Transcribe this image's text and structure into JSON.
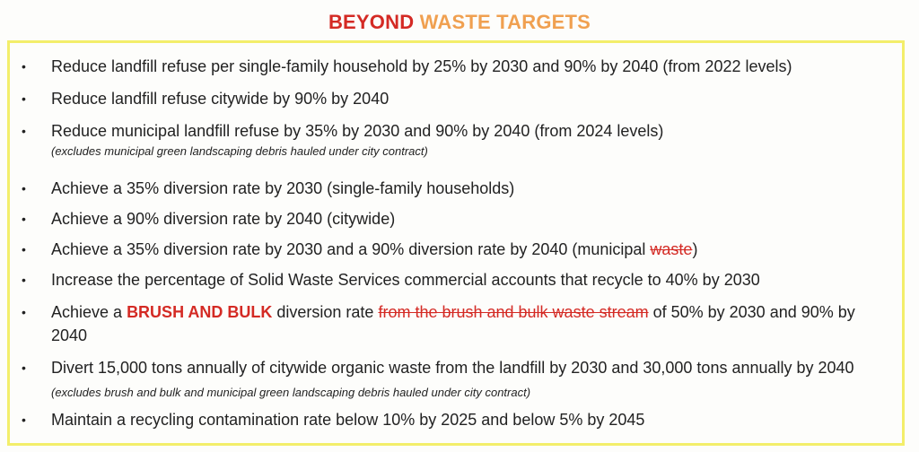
{
  "title": {
    "part1": "BEYOND",
    "part2": "WASTE TARGETS"
  },
  "colors": {
    "title_red": "#d42a24",
    "title_orange": "#f0a050",
    "border_yellow": "#f3ee6a"
  },
  "bullet": "•",
  "items": [
    {
      "segments": [
        {
          "text": "Reduce landfill refuse per single-family household by 25% by 2030 and 90% by 2040 (from 2022 levels)",
          "style": "normal"
        }
      ]
    },
    {
      "segments": [
        {
          "text": "Reduce landfill refuse citywide by 90% by 2040",
          "style": "normal"
        }
      ]
    },
    {
      "segments": [
        {
          "text": "Reduce municipal landfill refuse by 35% by 2030 and 90% by 2040 (from 2024 levels)",
          "style": "normal"
        }
      ],
      "note": "(excludes municipal green landscaping debris hauled under city contract)"
    },
    {
      "segments": [
        {
          "text": "Achieve a 35% diversion rate by 2030 (single-family households)",
          "style": "normal"
        }
      ]
    },
    {
      "segments": [
        {
          "text": "Achieve a 90% diversion rate by 2040 (citywide)",
          "style": "normal"
        }
      ]
    },
    {
      "segments": [
        {
          "text": "Achieve a 35% diversion rate by 2030 and a 90% diversion rate by 2040 (municipal ",
          "style": "normal"
        },
        {
          "text": "waste",
          "style": "strike"
        },
        {
          "text": ")",
          "style": "normal"
        }
      ]
    },
    {
      "segments": [
        {
          "text": "Increase the percentage of Solid Waste Services commercial accounts that recycle to 40% by 2030",
          "style": "normal"
        }
      ]
    },
    {
      "segments": [
        {
          "text": "Achieve a ",
          "style": "normal"
        },
        {
          "text": "BRUSH AND BULK",
          "style": "emph"
        },
        {
          "text": " diversion rate ",
          "style": "normal"
        },
        {
          "text": "from the brush and bulk waste stream",
          "style": "strike"
        },
        {
          "text": " of 50% by 2030 and 90% by 2040",
          "style": "normal"
        }
      ]
    },
    {
      "segments": [
        {
          "text": "Divert 15,000 tons annually of citywide organic waste from the landfill by 2030 and 30,000 tons annually by 2040 ",
          "style": "normal"
        },
        {
          "text": "(excludes brush and bulk and municipal green landscaping debris hauled under city contract)",
          "style": "note"
        }
      ]
    },
    {
      "segments": [
        {
          "text": "Maintain a recycling contamination rate below 10% by 2025 and below 5% by 2045",
          "style": "normal"
        }
      ]
    }
  ]
}
